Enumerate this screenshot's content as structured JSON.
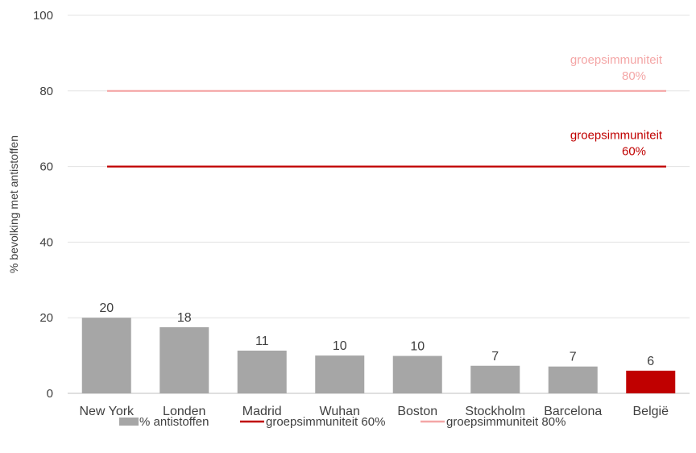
{
  "chart_data": {
    "type": "bar",
    "title": "",
    "xlabel": "",
    "ylabel": "% bevolking met antistoffen",
    "ylim": [
      0,
      100
    ],
    "yticks": [
      "0",
      "20",
      "40",
      "60",
      "80",
      "100"
    ],
    "grid": true,
    "legend_position": "bottom",
    "categories": [
      "New York",
      "Londen",
      "Madrid",
      "Wuhan",
      "Boston",
      "Stockholm",
      "Barcelona",
      "België"
    ],
    "series": [
      {
        "name": "% antistoffen",
        "values": [
          20,
          17.5,
          11.3,
          10,
          9.9,
          7.3,
          7.1,
          6
        ],
        "labels": [
          "20",
          "18",
          "11",
          "10",
          "10",
          "7",
          "7",
          "6"
        ],
        "color": "#a6a6a6",
        "highlight_color": "#c00000",
        "highlight_index": 7
      }
    ],
    "reference_lines": [
      {
        "name": "groepsimmuniteit 60%",
        "value": 60,
        "color": "#c00000",
        "label_line1": "groepsimmuniteit",
        "label_line2": "60%"
      },
      {
        "name": "groepsimmuniteit 80%",
        "value": 80,
        "color": "#f4a6a6",
        "label_line1": "groepsimmuniteit",
        "label_line2": "80%"
      }
    ]
  }
}
